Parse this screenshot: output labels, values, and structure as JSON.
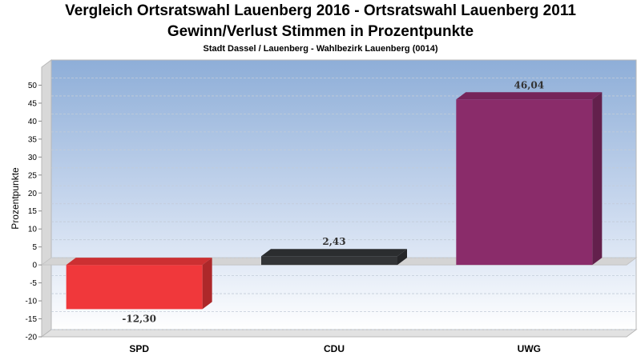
{
  "chart_data": {
    "type": "bar",
    "title": "Vergleich Ortsratswahl Lauenberg 2016 - Ortsratswahl Lauenberg 2011",
    "subtitle": "Gewinn/Verlust Stimmen in Prozentpunkte",
    "caption": "Stadt Dassel / Lauenberg - Wahlbezirk Lauenberg (0014)",
    "ylabel": "Prozentpunkte",
    "categories": [
      "SPD",
      "CDU",
      "UWG"
    ],
    "values": [
      -12.3,
      2.43,
      46.04
    ],
    "value_labels": [
      "-12,30",
      "2,43",
      "46,04"
    ],
    "colors": [
      "#f0383b",
      "#333537",
      "#8a2c6a"
    ],
    "ylim": [
      -20,
      55
    ],
    "yticks": [
      -20,
      -15,
      -10,
      -5,
      0,
      5,
      10,
      15,
      20,
      25,
      30,
      35,
      40,
      45,
      50
    ],
    "grid": true,
    "legend": "none"
  }
}
